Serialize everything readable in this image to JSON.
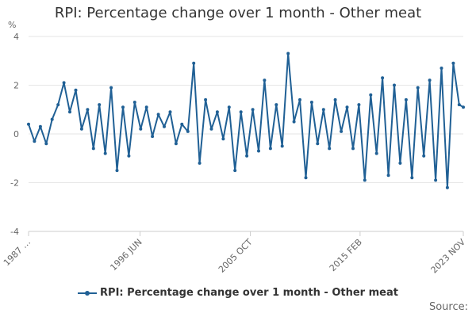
{
  "chart_data": {
    "type": "line",
    "title": "RPI: Percentage change over 1 month - Other meat",
    "ylabel": "%",
    "xlabel": "",
    "ylim": [
      -4,
      4
    ],
    "y_ticks": [
      "-4",
      "-2",
      "0",
      "2",
      "4"
    ],
    "x_range": [
      1987.0,
      2023.85
    ],
    "x_tick_labels": [
      {
        "x": 1987.0,
        "label": "1987 …"
      },
      {
        "x": 1996.45,
        "label": "1996 JUN"
      },
      {
        "x": 2005.8,
        "label": "2005 OCT"
      },
      {
        "x": 2015.1,
        "label": "2015 FEB"
      },
      {
        "x": 2023.85,
        "label": "2023 NOV"
      }
    ],
    "grid": "horizontal",
    "legend_position": "bottom-center",
    "color": "#206095",
    "series": [
      {
        "name": "RPI: Percentage change over 1 month - Other meat",
        "x": [
          1987.0,
          1987.5,
          1988.0,
          1988.5,
          1989.0,
          1989.5,
          1990.0,
          1990.5,
          1991.0,
          1991.5,
          1992.0,
          1992.5,
          1993.0,
          1993.5,
          1994.0,
          1994.5,
          1995.0,
          1995.5,
          1996.0,
          1996.5,
          1997.0,
          1997.5,
          1998.0,
          1998.5,
          1999.0,
          1999.5,
          2000.0,
          2000.5,
          2001.0,
          2001.5,
          2002.0,
          2002.5,
          2003.0,
          2003.5,
          2004.0,
          2004.5,
          2005.0,
          2005.5,
          2006.0,
          2006.5,
          2007.0,
          2007.5,
          2008.0,
          2008.5,
          2009.0,
          2009.5,
          2010.0,
          2010.5,
          2011.0,
          2011.5,
          2012.0,
          2012.5,
          2013.0,
          2013.5,
          2014.0,
          2014.5,
          2015.0,
          2015.5,
          2016.0,
          2016.5,
          2017.0,
          2017.5,
          2018.0,
          2018.5,
          2019.0,
          2019.5,
          2020.0,
          2020.5,
          2021.0,
          2021.5,
          2022.0,
          2022.5,
          2023.0,
          2023.5,
          2023.85
        ],
        "values": [
          0.4,
          -0.3,
          0.3,
          -0.4,
          0.6,
          1.2,
          2.1,
          0.9,
          1.8,
          0.2,
          1.0,
          -0.6,
          1.2,
          -0.8,
          1.9,
          -1.5,
          1.1,
          -0.9,
          1.3,
          0.2,
          1.1,
          -0.1,
          0.8,
          0.3,
          0.9,
          -0.4,
          0.4,
          0.1,
          2.9,
          -1.2,
          1.4,
          0.2,
          0.9,
          -0.2,
          1.1,
          -1.5,
          0.9,
          -0.9,
          1.0,
          -0.7,
          2.2,
          -0.6,
          1.2,
          -0.5,
          3.3,
          0.5,
          1.4,
          -1.8,
          1.3,
          -0.4,
          1.0,
          -0.6,
          1.4,
          0.1,
          1.1,
          -0.6,
          1.2,
          -1.9,
          1.6,
          -0.8,
          2.3,
          -1.7,
          2.0,
          -1.2,
          1.4,
          -1.8,
          1.9,
          -0.9,
          2.2,
          -1.9,
          2.7,
          -2.2,
          2.9,
          1.2,
          1.1
        ]
      }
    ]
  }
}
